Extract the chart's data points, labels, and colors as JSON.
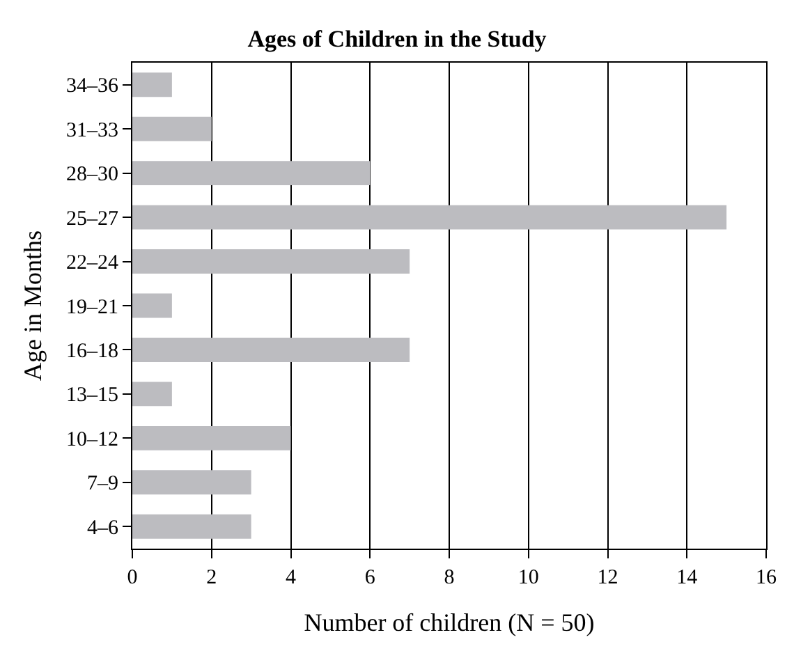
{
  "chart_data": {
    "type": "bar",
    "orientation": "horizontal",
    "title": "Ages of Children in the Study",
    "xlabel": "Number of children (N = 50)",
    "ylabel": "Age in Months",
    "categories": [
      "34–36",
      "31–33",
      "28–30",
      "25–27",
      "22–24",
      "19–21",
      "16–18",
      "13–15",
      "10–12",
      "7–9",
      "4–6"
    ],
    "values": [
      1,
      2,
      6,
      15,
      7,
      1,
      7,
      1,
      4,
      3,
      3
    ],
    "color": "#bcbcc0",
    "xlim": [
      0,
      16
    ],
    "xticks": [
      0,
      2,
      4,
      6,
      8,
      10,
      12,
      14,
      16
    ],
    "grid": "x"
  }
}
